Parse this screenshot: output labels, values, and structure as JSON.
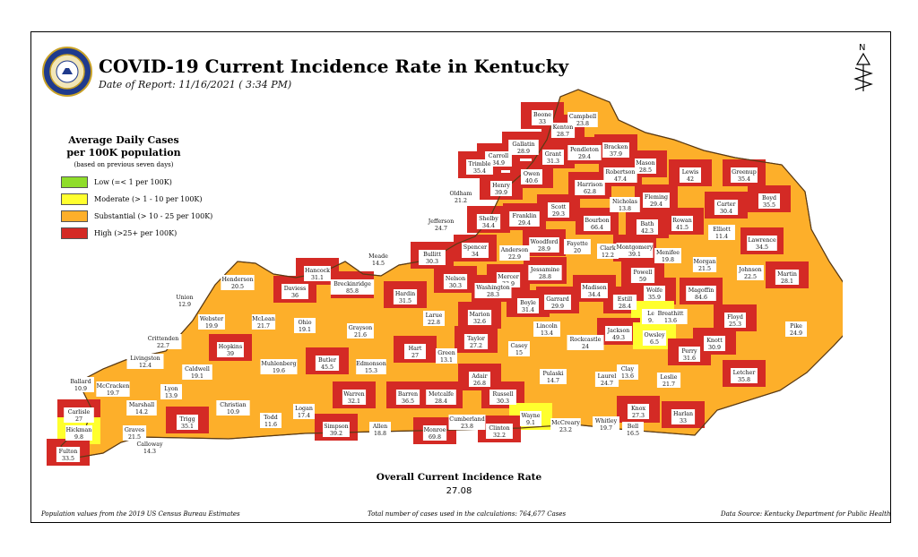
{
  "header": {
    "title": "COVID-19 Current Incidence Rate in Kentucky",
    "subtitle": "Date of Report: 11/16/2021 ( 3:34 PM)",
    "north_label": "N"
  },
  "legend": {
    "title_line1": "Average Daily Cases",
    "title_line2": "per 100K population",
    "note": "(based on previous seven days)",
    "items": [
      {
        "label": "Low (=< 1 per 100K)",
        "color": "#8fdd2a"
      },
      {
        "label": "Moderate (> 1 - 10 per 100K)",
        "color": "#ffff2e"
      },
      {
        "label": "Substantial (> 10 - 25 per 100K)",
        "color": "#fdaf2a"
      },
      {
        "label": "High (>25+ per 100K)",
        "color": "#d42a25"
      }
    ]
  },
  "summary": {
    "label": "Overall Current Incidence Rate",
    "value": "27.08"
  },
  "footer": {
    "left": "Population values from the 2019 US Census Bureau Estimates",
    "center": "Total number of cases used in the calculations: 764,677 Cases",
    "right": "Data Source: Kentucky Department for Public Health"
  },
  "counties": [
    {
      "name": "Boone",
      "rate": "33",
      "level": "high"
    },
    {
      "name": "Campbell",
      "rate": "23.8",
      "level": "substantial"
    },
    {
      "name": "Kenton",
      "rate": "28.7",
      "level": "high"
    },
    {
      "name": "Gallatin",
      "rate": "28.9",
      "level": "high"
    },
    {
      "name": "Grant",
      "rate": "31.3",
      "level": "high"
    },
    {
      "name": "Pendleton",
      "rate": "29.4",
      "level": "high"
    },
    {
      "name": "Bracken",
      "rate": "37.9",
      "level": "high"
    },
    {
      "name": "Carroll",
      "rate": "34.9",
      "level": "high"
    },
    {
      "name": "Trimble",
      "rate": "35.4",
      "level": "high"
    },
    {
      "name": "Owen",
      "rate": "40.6",
      "level": "high"
    },
    {
      "name": "Mason",
      "rate": "28.5",
      "level": "high"
    },
    {
      "name": "Robertson",
      "rate": "47.4",
      "level": "high"
    },
    {
      "name": "Lewis",
      "rate": "42",
      "level": "high"
    },
    {
      "name": "Greenup",
      "rate": "35.4",
      "level": "high"
    },
    {
      "name": "Henry",
      "rate": "39.9",
      "level": "high"
    },
    {
      "name": "Harrison",
      "rate": "62.8",
      "level": "high"
    },
    {
      "name": "Fleming",
      "rate": "29.4",
      "level": "high"
    },
    {
      "name": "Oldham",
      "rate": "21.2",
      "level": "substantial"
    },
    {
      "name": "Scott",
      "rate": "29.3",
      "level": "high"
    },
    {
      "name": "Nicholas",
      "rate": "13.8",
      "level": "substantial"
    },
    {
      "name": "Carter",
      "rate": "30.4",
      "level": "high"
    },
    {
      "name": "Boyd",
      "rate": "35.5",
      "level": "high"
    },
    {
      "name": "Shelby",
      "rate": "34.4",
      "level": "high"
    },
    {
      "name": "Franklin",
      "rate": "29.4",
      "level": "high"
    },
    {
      "name": "Bourbon",
      "rate": "66.4",
      "level": "high"
    },
    {
      "name": "Bath",
      "rate": "42.3",
      "level": "high"
    },
    {
      "name": "Rowan",
      "rate": "41.5",
      "level": "high"
    },
    {
      "name": "Jefferson",
      "rate": "24.7",
      "level": "substantial"
    },
    {
      "name": "Elliott",
      "rate": "11.4",
      "level": "substantial"
    },
    {
      "name": "Lawrence",
      "rate": "34.5",
      "level": "high"
    },
    {
      "name": "Spencer",
      "rate": "34",
      "level": "high"
    },
    {
      "name": "Woodford",
      "rate": "28.9",
      "level": "high"
    },
    {
      "name": "Fayette",
      "rate": "20",
      "level": "substantial"
    },
    {
      "name": "Clark",
      "rate": "12.2",
      "level": "substantial"
    },
    {
      "name": "Montgomery",
      "rate": "39.1",
      "level": "high"
    },
    {
      "name": "Anderson",
      "rate": "22.9",
      "level": "substantial"
    },
    {
      "name": "Menifee",
      "rate": "19.8",
      "level": "substantial"
    },
    {
      "name": "Morgan",
      "rate": "21.5",
      "level": "substantial"
    },
    {
      "name": "Bullitt",
      "rate": "30.3",
      "level": "high"
    },
    {
      "name": "Jessamine",
      "rate": "28.8",
      "level": "high"
    },
    {
      "name": "Johnson",
      "rate": "22.5",
      "level": "substantial"
    },
    {
      "name": "Meade",
      "rate": "14.5",
      "level": "substantial"
    },
    {
      "name": "Hancock",
      "rate": "31.1",
      "level": "high"
    },
    {
      "name": "Nelson",
      "rate": "30.3",
      "level": "high"
    },
    {
      "name": "Mercer",
      "rate": "33.9",
      "level": "high"
    },
    {
      "name": "Powell",
      "rate": "59",
      "level": "high"
    },
    {
      "name": "Martin",
      "rate": "28.1",
      "level": "high"
    },
    {
      "name": "Henderson",
      "rate": "20.5",
      "level": "substantial"
    },
    {
      "name": "Breckinridge",
      "rate": "85.8",
      "level": "high"
    },
    {
      "name": "Washington",
      "rate": "28.3",
      "level": "high"
    },
    {
      "name": "Madison",
      "rate": "34.4",
      "level": "high"
    },
    {
      "name": "Wolfe",
      "rate": "35.9",
      "level": "high"
    },
    {
      "name": "Magoffin",
      "rate": "84.6",
      "level": "high"
    },
    {
      "name": "Daviess",
      "rate": "36",
      "level": "high"
    },
    {
      "name": "Hardin",
      "rate": "31.5",
      "level": "high"
    },
    {
      "name": "Garrard",
      "rate": "29.9",
      "level": "high"
    },
    {
      "name": "Estill",
      "rate": "28.4",
      "level": "high"
    },
    {
      "name": "Boyle",
      "rate": "31.4",
      "level": "high"
    },
    {
      "name": "Union",
      "rate": "12.9",
      "level": "substantial"
    },
    {
      "name": "Lee",
      "rate": "9.6",
      "level": "moderate"
    },
    {
      "name": "Breathitt",
      "rate": "13.6",
      "level": "substantial"
    },
    {
      "name": "Floyd",
      "rate": "25.3",
      "level": "high"
    },
    {
      "name": "Larue",
      "rate": "22.8",
      "level": "substantial"
    },
    {
      "name": "Marion",
      "rate": "32.6",
      "level": "high"
    },
    {
      "name": "Webster",
      "rate": "19.9",
      "level": "substantial"
    },
    {
      "name": "McLean",
      "rate": "21.7",
      "level": "substantial"
    },
    {
      "name": "Ohio",
      "rate": "19.1",
      "level": "substantial"
    },
    {
      "name": "Lincoln",
      "rate": "13.4",
      "level": "substantial"
    },
    {
      "name": "Jackson",
      "rate": "49.3",
      "level": "high"
    },
    {
      "name": "Owsley",
      "rate": "6.5",
      "level": "moderate"
    },
    {
      "name": "Pike",
      "rate": "24.9",
      "level": "substantial"
    },
    {
      "name": "Grayson",
      "rate": "21.6",
      "level": "substantial"
    },
    {
      "name": "Taylor",
      "rate": "27.2",
      "level": "high"
    },
    {
      "name": "Rockcastle",
      "rate": "24",
      "level": "substantial"
    },
    {
      "name": "Knott",
      "rate": "30.9",
      "level": "high"
    },
    {
      "name": "Crittenden",
      "rate": "22.7",
      "level": "substantial"
    },
    {
      "name": "Hopkins",
      "rate": "39",
      "level": "high"
    },
    {
      "name": "Hart",
      "rate": "27",
      "level": "high"
    },
    {
      "name": "Casey",
      "rate": "15",
      "level": "substantial"
    },
    {
      "name": "Perry",
      "rate": "31.6",
      "level": "high"
    },
    {
      "name": "Livingston",
      "rate": "12.4",
      "level": "substantial"
    },
    {
      "name": "Muhlenberg",
      "rate": "19.6",
      "level": "substantial"
    },
    {
      "name": "Butler",
      "rate": "45.5",
      "level": "high"
    },
    {
      "name": "Edmonson",
      "rate": "15.3",
      "level": "substantial"
    },
    {
      "name": "Green",
      "rate": "13.1",
      "level": "substantial"
    },
    {
      "name": "Caldwell",
      "rate": "19.1",
      "level": "substantial"
    },
    {
      "name": "Pulaski",
      "rate": "14.7",
      "level": "substantial"
    },
    {
      "name": "Clay",
      "rate": "13.6",
      "level": "substantial"
    },
    {
      "name": "Letcher",
      "rate": "35.8",
      "level": "high"
    },
    {
      "name": "Ballard",
      "rate": "10.9",
      "level": "substantial"
    },
    {
      "name": "McCracken",
      "rate": "19.7",
      "level": "substantial"
    },
    {
      "name": "Lyon",
      "rate": "13.9",
      "level": "substantial"
    },
    {
      "name": "Adair",
      "rate": "26.8",
      "level": "high"
    },
    {
      "name": "Laurel",
      "rate": "24.7",
      "level": "substantial"
    },
    {
      "name": "Leslie",
      "rate": "21.7",
      "level": "substantial"
    },
    {
      "name": "Warren",
      "rate": "32.1",
      "level": "high"
    },
    {
      "name": "Barren",
      "rate": "36.5",
      "level": "high"
    },
    {
      "name": "Metcalfe",
      "rate": "28.4",
      "level": "high"
    },
    {
      "name": "Russell",
      "rate": "30.3",
      "level": "high"
    },
    {
      "name": "Marshall",
      "rate": "14.2",
      "level": "substantial"
    },
    {
      "name": "Christian",
      "rate": "10.9",
      "level": "substantial"
    },
    {
      "name": "Logan",
      "rate": "17.4",
      "level": "substantial"
    },
    {
      "name": "Knox",
      "rate": "27.3",
      "level": "high"
    },
    {
      "name": "Harlan",
      "rate": "33",
      "level": "high"
    },
    {
      "name": "Carlisle",
      "rate": "27",
      "level": "high"
    },
    {
      "name": "Todd",
      "rate": "11.6",
      "level": "substantial"
    },
    {
      "name": "Wayne",
      "rate": "9.1",
      "level": "moderate"
    },
    {
      "name": "Trigg",
      "rate": "35.1",
      "level": "high"
    },
    {
      "name": "Simpson",
      "rate": "39.2",
      "level": "high"
    },
    {
      "name": "Allen",
      "rate": "18.8",
      "level": "substantial"
    },
    {
      "name": "Cumberland",
      "rate": "23.8",
      "level": "substantial"
    },
    {
      "name": "Clinton",
      "rate": "32.2",
      "level": "high"
    },
    {
      "name": "McCreary",
      "rate": "23.2",
      "level": "substantial"
    },
    {
      "name": "Whitley",
      "rate": "19.7",
      "level": "substantial"
    },
    {
      "name": "Bell",
      "rate": "16.5",
      "level": "substantial"
    },
    {
      "name": "Hickman",
      "rate": "9.8",
      "level": "moderate"
    },
    {
      "name": "Graves",
      "rate": "21.5",
      "level": "substantial"
    },
    {
      "name": "Calloway",
      "rate": "14.3",
      "level": "substantial"
    },
    {
      "name": "Monroe",
      "rate": "69.8",
      "level": "high"
    },
    {
      "name": "Fulton",
      "rate": "33.5",
      "level": "high"
    }
  ]
}
